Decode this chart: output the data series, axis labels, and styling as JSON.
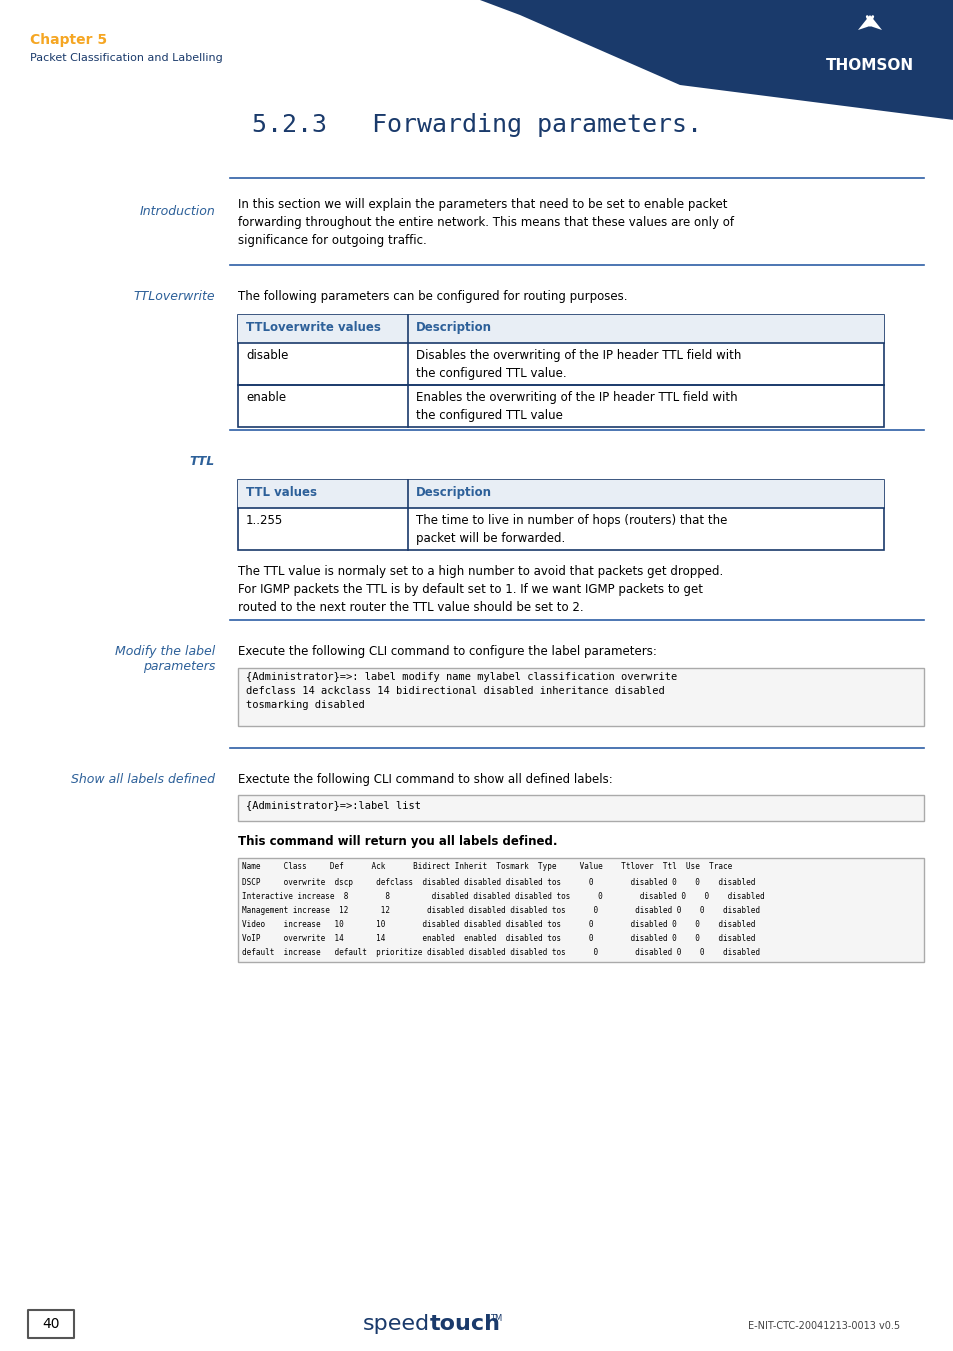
{
  "page_num": "40",
  "chapter": "Chapter 5",
  "chapter_sub": "Packet Classification and Labelling",
  "section_title": "5.2.3   Forwarding parameters.",
  "thomson_text": "THOMSON",
  "footer_center": "speedtouch",
  "footer_center_bold": "touch",
  "footer_right": "E-NIT-CTC-20041213-0013 v0.5",
  "bg_color": "#ffffff",
  "header_navy": "#1a3a6b",
  "header_orange": "#f5a623",
  "blue_dark": "#1a3a6b",
  "blue_mid": "#2d5fa6",
  "section_color": "#2d6099",
  "intro_label": "Introduction",
  "intro_text": "In this section we will explain the parameters that need to be set to enable packet\nforwarding throughout the entire network. This means that these values are only of\nsignificance for outgoing traffic.",
  "ttl_label": "TTLoverwrite",
  "ttl_text": "The following parameters can be configured for routing purposes.",
  "ttl_table_headers": [
    "TTLoverwrite values",
    "Description"
  ],
  "ttl_table_rows": [
    [
      "disable",
      "Disables the overwriting of the IP header TTL field with\nthe configured TTL value."
    ],
    [
      "enable",
      "Enables the overwriting of the IP header TTL field with\nthe configured TTL value"
    ]
  ],
  "ttl2_label": "TTL",
  "ttl2_table_headers": [
    "TTL values",
    "Description"
  ],
  "ttl2_table_rows": [
    [
      "1..255",
      "The time to live in number of hops (routers) that the\npacket will be forwarded."
    ]
  ],
  "ttl2_text1": "The TTL value is normaly set to a high number to avoid that packets get dropped.",
  "ttl2_text2": "For IGMP packets the TTL is by default set to 1. If we want IGMP packets to get\nrouted to the next router the TTL value should be set to 2.",
  "modify_label": "Modify the label\nparameters",
  "modify_text": "Execute the following CLI command to configure the label parameters:",
  "modify_code": "{Administrator}=>: label modify name mylabel classification overwrite\ndefclass 14 ackclass 14 bidirectional disabled inheritance disabled\ntosmarking disabled",
  "show_label": "Show all labels defined",
  "show_text": "Exectute the following CLI command to show all defined labels:",
  "show_code": "{Administrator}=>:label list",
  "show_text2": "This command will return you all labels defined.",
  "table_data_header": "Name     Class     Def      Ack      Bidirect Inherit  Tosmark  Type     Value    Ttlover  Ttl  Use  Trace",
  "table_data_rows": [
    "DSCP     overwrite  dscp     defclass  disabled disabled disabled tos      0        disabled 0    0    disabled",
    "Interactive increase  8        8         disabled disabled disabled tos      0        disabled 0    0    disabled",
    "Management increase  12       12        disabled disabled disabled tos      0        disabled 0    0    disabled",
    "Video    increase   10       10        disabled disabled disabled tos      0        disabled 0    0    disabled",
    "VoIP     overwrite  14       14        enabled  enabled  disabled tos      0        disabled 0    0    disabled",
    "default  increase   default  prioritize disabled disabled disabled tos      0        disabled 0    0    disabled"
  ]
}
